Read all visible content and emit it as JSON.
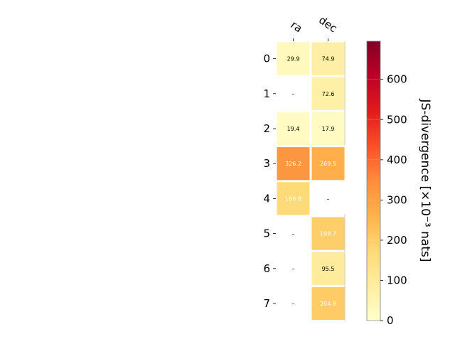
{
  "chart_data": {
    "type": "heatmap",
    "columns": [
      "ra",
      "dec"
    ],
    "rows": [
      "0",
      "1",
      "2",
      "3",
      "4",
      "5",
      "6",
      "7"
    ],
    "values": [
      [
        29.9,
        74.9
      ],
      [
        null,
        72.6
      ],
      [
        19.4,
        17.9
      ],
      [
        326.2,
        269.5
      ],
      [
        166.8,
        null
      ],
      [
        null,
        198.7
      ],
      [
        null,
        95.5
      ],
      [
        null,
        204.8
      ]
    ],
    "cell_labels": [
      [
        "29.9",
        "74.9"
      ],
      [
        "–",
        "72.6"
      ],
      [
        "19.4",
        "17.9"
      ],
      [
        "326.2",
        "269.5"
      ],
      [
        "166.8",
        "–"
      ],
      [
        "–",
        "198.7"
      ],
      [
        "–",
        "95.5"
      ],
      [
        "–",
        "204.8"
      ]
    ],
    "colorbar": {
      "label": "JS-divergence [×10⁻³ nats]",
      "min": 0,
      "max": 695,
      "ticks": [
        0,
        100,
        200,
        300,
        400,
        500,
        600
      ],
      "tick_labels": [
        "0",
        "100",
        "200",
        "300",
        "400",
        "500",
        "600"
      ],
      "colormap": "YlOrRd"
    },
    "missing_label": "–",
    "grid": false
  }
}
